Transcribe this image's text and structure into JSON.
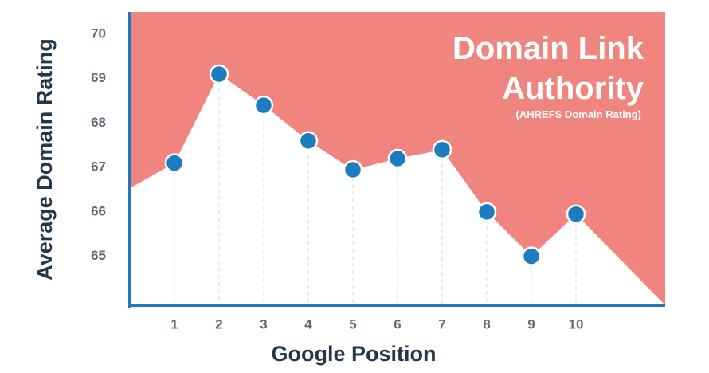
{
  "chart_data": {
    "type": "line",
    "title": "Domain Link Authority",
    "subtitle": "(AHREFS Domain Rating)",
    "x_label": "Google Position",
    "y_label": "Average Domain Rating",
    "x": [
      1,
      2,
      3,
      4,
      5,
      6,
      7,
      8,
      9,
      10
    ],
    "values": [
      67.1,
      69.1,
      68.4,
      67.6,
      66.95,
      67.2,
      67.4,
      66.0,
      65.0,
      65.95
    ],
    "color": "#1f7bc0",
    "background_color": "#f08580",
    "xlim": [
      0,
      12
    ],
    "xticks": [
      1,
      2,
      3,
      4,
      5,
      6,
      7,
      8,
      9,
      10
    ],
    "ylim": [
      63.9,
      70.5
    ],
    "yticks": [
      65,
      66,
      67,
      68,
      69,
      70
    ]
  }
}
